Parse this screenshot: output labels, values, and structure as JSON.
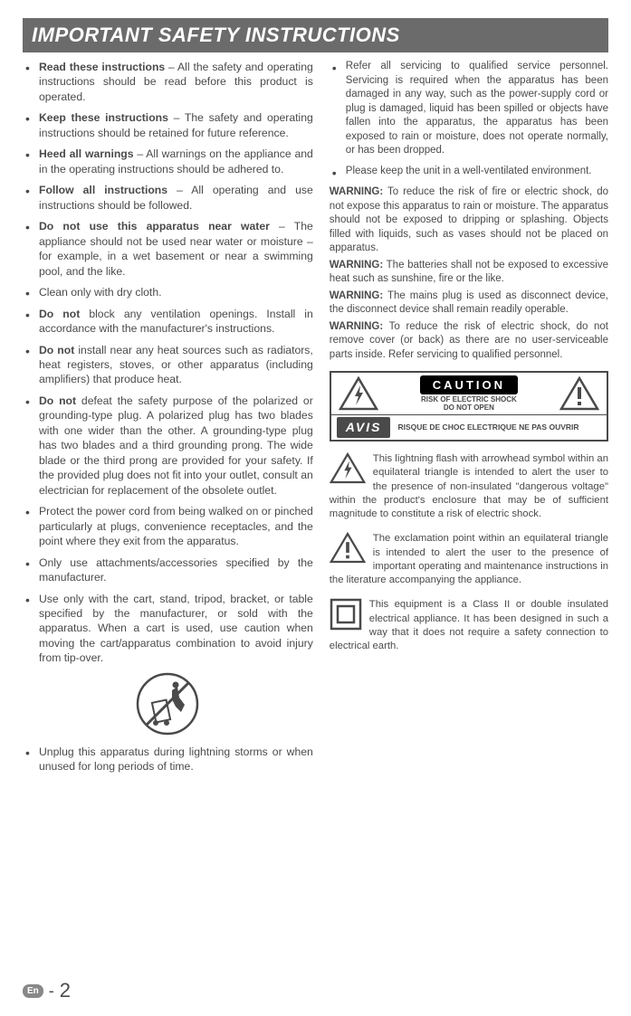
{
  "header": "IMPORTANT SAFETY INSTRUCTIONS",
  "left_items": [
    {
      "bold": "Read these instructions",
      "rest": " – All the safety and operating instructions should be read before this product is operated."
    },
    {
      "bold": "Keep these instructions",
      "rest": " – The safety and operating instructions should be retained for future reference."
    },
    {
      "bold": "Heed all warnings",
      "rest": " – All warnings on the appliance and in the operating instructions should be adhered to."
    },
    {
      "bold": "Follow all instructions",
      "rest": " – All operating and use instructions should be followed."
    },
    {
      "bold": "Do not use this apparatus near water",
      "rest": " – The appliance should not be used near water or moisture – for example, in a wet basement or near a swimming pool, and the like."
    },
    {
      "bold": "",
      "rest": "Clean only with dry cloth."
    },
    {
      "bold": "Do not",
      "rest": " block any ventilation openings. Install in accordance with the manufacturer's instructions."
    },
    {
      "bold": "Do not",
      "rest": " install near any heat sources such as radiators, heat registers, stoves, or other apparatus (including amplifiers) that produce heat."
    },
    {
      "bold": "Do not",
      "rest": " defeat the safety purpose of the polarized or grounding-type plug. A polarized plug has two blades with one wider than the other. A grounding-type plug has two blades and a third grounding prong. The wide blade or the third prong are provided for your safety. If the provided plug does not fit into your outlet, consult an electrician for replacement of the obsolete outlet."
    },
    {
      "bold": "",
      "rest": "Protect the power cord from being walked on or pinched particularly at plugs, convenience receptacles, and the point where they exit from the apparatus."
    },
    {
      "bold": "",
      "rest": "Only use attachments/accessories specified by the manufacturer."
    },
    {
      "bold": "",
      "rest": "Use only with the cart, stand, tripod, bracket, or table specified by the manufacturer, or sold with the apparatus. When a cart is used, use caution when moving the cart/apparatus combination to avoid injury from tip-over."
    }
  ],
  "left_after_icon": [
    {
      "bold": "",
      "rest": "Unplug this apparatus during lightning storms or when unused for long periods of time."
    }
  ],
  "right_items": [
    {
      "bold": "",
      "rest": "Refer all servicing to qualified service personnel. Servicing is required when the apparatus has been damaged in any way, such as the power-supply cord or plug is damaged, liquid has been spilled or objects have fallen into the apparatus, the apparatus has been exposed to rain or moisture, does not operate normally, or has been dropped."
    },
    {
      "bold": "",
      "rest": "Please keep the unit in a well-ventilated environment."
    }
  ],
  "warnings": [
    {
      "label": "WARNING:",
      "text": " To reduce the risk of fire or electric shock, do not expose this apparatus to rain or moisture. The apparatus should not be exposed to dripping or splashing. Objects filled with liquids, such as vases should not be placed on apparatus."
    },
    {
      "label": "WARNING:",
      "text": " The batteries shall not be exposed to excessive heat such as sunshine, fire or the like."
    },
    {
      "label": "WARNING:",
      "text": " The mains plug is used as disconnect device, the disconnect device shall remain readily operable."
    },
    {
      "label": "WARNING:",
      "text": " To reduce the risk of electric shock, do not remove cover (or back) as there are no user-serviceable parts inside. Refer servicing to qualified personnel."
    }
  ],
  "caution": {
    "label": "CAUTION",
    "sub1": "RISK OF ELECTRIC SHOCK",
    "sub2": "DO NOT OPEN",
    "avis": "AVIS",
    "avis_text": "RISQUE DE CHOC ELECTRIQUE NE PAS OUVRIR"
  },
  "lightning_para": "This lightning flash with arrowhead symbol within an equilateral triangle is intended to alert the user to the presence of non-insulated \"dangerous voltage\" within the product's enclosure that may be of sufficient magnitude to constitute a risk of electric shock.",
  "exclaim_para": "The exclamation point within an equilateral triangle is intended to alert the user to the presence of important operating and maintenance instructions in the literature accompanying the appliance.",
  "class2_para": "This equipment is a Class II or double insulated electrical appliance. It has been designed in such a way that it does not require a safety connection to electrical earth.",
  "footer": {
    "lang": "En",
    "page": "2"
  },
  "colors": {
    "header_bg": "#6b6b6b",
    "text": "#4a4a4a"
  }
}
